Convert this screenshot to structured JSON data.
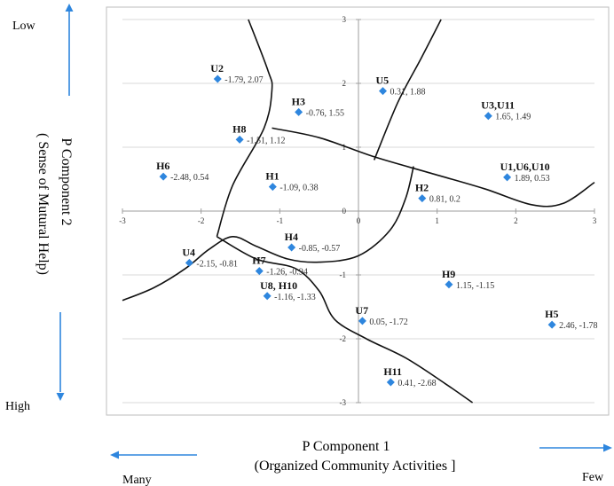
{
  "chart_data": {
    "type": "scatter",
    "title": "",
    "xlabel": "P Component 1",
    "xlabel_sub": "(Organized Community Activities ]",
    "ylabel": "P Component 2",
    "ylabel_sub": "( Sense of Mutural Help)",
    "x_low_label": "Many",
    "x_high_label": "Few",
    "y_top_label": "Low",
    "y_bottom_label": "High",
    "xlim": [
      -3,
      3
    ],
    "ylim": [
      -3,
      3
    ],
    "x_ticks": [
      "-3",
      "-2",
      "-1",
      "0",
      "1",
      "2",
      "3"
    ],
    "y_ticks": [
      "3",
      "2",
      "1",
      "0",
      "-1",
      "-2",
      "-3"
    ],
    "grid": true,
    "marker_color": "#2e86de",
    "points": [
      {
        "name": "U2",
        "label": "-1.79, 2.07",
        "x": -1.79,
        "y": 2.07
      },
      {
        "name": "U5",
        "label": "0.31, 1.88",
        "x": 0.31,
        "y": 1.88
      },
      {
        "name": "H3",
        "label": "-0.76, 1.55",
        "x": -0.76,
        "y": 1.55
      },
      {
        "name": "U3,U11",
        "label": "1.65, 1.49",
        "x": 1.65,
        "y": 1.49
      },
      {
        "name": "H8",
        "label": "-1.51, 1.12",
        "x": -1.51,
        "y": 1.12
      },
      {
        "name": "H6",
        "label": "-2.48, 0.54",
        "x": -2.48,
        "y": 0.54
      },
      {
        "name": "H1",
        "label": "-1.09, 0.38",
        "x": -1.09,
        "y": 0.38
      },
      {
        "name": "U1,U6,U10",
        "label": "1.89, 0.53",
        "x": 1.89,
        "y": 0.53
      },
      {
        "name": "H2",
        "label": "0.81, 0.2",
        "x": 0.81,
        "y": 0.2
      },
      {
        "name": "H4",
        "label": "-0.85, -0.57",
        "x": -0.85,
        "y": -0.57
      },
      {
        "name": "U4",
        "label": "-2.15, -0.81",
        "x": -2.15,
        "y": -0.81
      },
      {
        "name": "H7",
        "label": "-1.26, -0.94",
        "x": -1.26,
        "y": -0.94
      },
      {
        "name": "H9",
        "label": "1.15, -1.15",
        "x": 1.15,
        "y": -1.15
      },
      {
        "name": "U8, H10",
        "label": "-1.16, -1.33",
        "x": -1.16,
        "y": -1.33
      },
      {
        "name": "U7",
        "label": "0.05, -1.72",
        "x": 0.05,
        "y": -1.72
      },
      {
        "name": "H5",
        "label": "2.46, -1.78",
        "x": 2.46,
        "y": -1.78
      },
      {
        "name": "H11",
        "label": "0.41, -2.68",
        "x": 0.41,
        "y": -2.68
      }
    ],
    "boundaries": [
      [
        [
          -1.4,
          3.0
        ],
        [
          -1.15,
          2.2
        ],
        [
          -1.1,
          1.9
        ],
        [
          -1.2,
          1.3
        ],
        [
          -1.6,
          0.4
        ],
        [
          -1.8,
          -0.4
        ]
      ],
      [
        [
          1.05,
          3.0
        ],
        [
          0.8,
          2.4
        ],
        [
          0.5,
          1.7
        ],
        [
          0.2,
          0.8
        ]
      ],
      [
        [
          -1.1,
          1.3
        ],
        [
          -0.5,
          1.15
        ],
        [
          0.2,
          0.85
        ],
        [
          0.9,
          0.6
        ],
        [
          1.6,
          0.35
        ],
        [
          2.2,
          0.1
        ],
        [
          2.6,
          0.12
        ],
        [
          3.0,
          0.45
        ]
      ],
      [
        [
          -3.0,
          -1.4
        ],
        [
          -2.6,
          -1.2
        ],
        [
          -2.2,
          -0.9
        ],
        [
          -1.9,
          -0.6
        ],
        [
          -1.6,
          -0.4
        ],
        [
          -1.3,
          -0.55
        ],
        [
          -0.9,
          -0.75
        ],
        [
          -0.5,
          -0.8
        ],
        [
          0.0,
          -0.7
        ],
        [
          0.4,
          -0.3
        ],
        [
          0.6,
          0.2
        ],
        [
          0.7,
          0.7
        ]
      ],
      [
        [
          -1.8,
          -0.4
        ],
        [
          -1.3,
          -0.75
        ],
        [
          -0.8,
          -0.9
        ],
        [
          -0.5,
          -1.25
        ],
        [
          -0.3,
          -1.7
        ],
        [
          0.1,
          -2.0
        ],
        [
          0.6,
          -2.3
        ],
        [
          1.1,
          -2.7
        ],
        [
          1.45,
          -3.0
        ]
      ]
    ]
  }
}
